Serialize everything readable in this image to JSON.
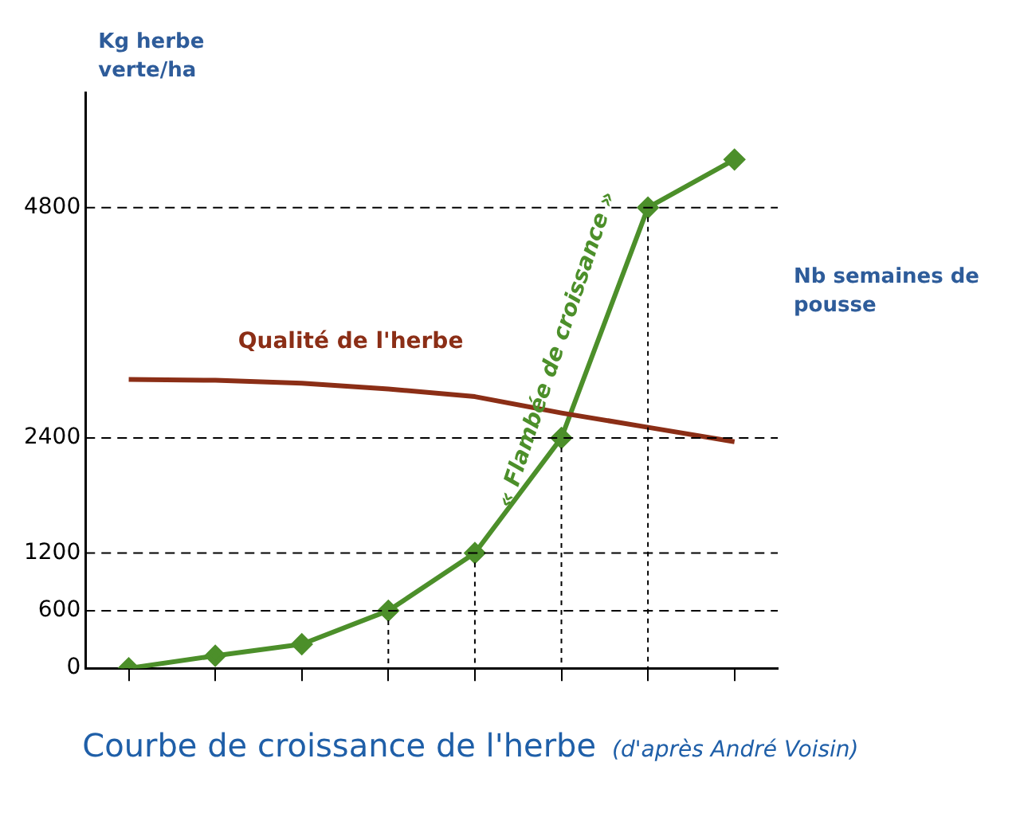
{
  "chart_data": {
    "type": "line",
    "title": "Courbe de croissance de l'herbe",
    "subtitle": "(d'après André Voisin)",
    "ylabel": "Kg herbe verte/ha",
    "annotations": [
      "« Flambée de croissance »",
      "Nb semaines de pousse"
    ],
    "categories": [
      null,
      null,
      null,
      null,
      null,
      null,
      null,
      null
    ],
    "ylim": [
      0,
      6000
    ],
    "yticks": [
      0,
      600,
      1200,
      2400,
      4800
    ],
    "grid": false,
    "legend": false,
    "ref_lines": [
      {
        "axis": "y",
        "value": 600,
        "line_style": "dashed"
      },
      {
        "axis": "y",
        "value": 1200,
        "line_style": "dashed"
      },
      {
        "axis": "y",
        "value": 2400,
        "line_style": "dashed"
      },
      {
        "axis": "y",
        "value": 4800,
        "line_style": "dashed"
      }
    ],
    "series": [
      {
        "name": "Qualité de l'herbe",
        "color": "#8b2e16",
        "marker": "none",
        "values": [
          3010,
          3000,
          2970,
          2910,
          2830,
          2660,
          2510,
          2360
        ]
      },
      {
        "color": "#4c8f2a",
        "marker": "diamond",
        "values": [
          0,
          130,
          250,
          600,
          1200,
          2400,
          4800,
          5300
        ]
      }
    ]
  }
}
